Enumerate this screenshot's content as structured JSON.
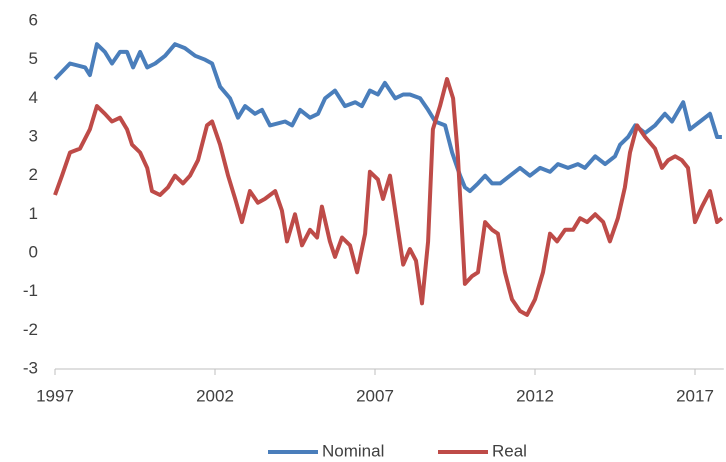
{
  "chart_data": {
    "type": "line",
    "xlim": [
      1997,
      2017.9
    ],
    "xticks": [
      1997,
      2002,
      2007,
      2012,
      2017
    ],
    "ylim": [
      -3,
      6
    ],
    "yticks": [
      -3,
      -2,
      -1,
      0,
      1,
      2,
      3,
      4,
      5,
      6
    ],
    "grid": false,
    "legend": "bottom",
    "series": [
      {
        "name": "Nominal",
        "color": "#4a7ebb",
        "x": [
          1997.0,
          1997.47,
          1997.94,
          1998.09,
          1998.31,
          1998.56,
          1998.78,
          1999.03,
          1999.25,
          1999.44,
          1999.66,
          1999.88,
          2000.13,
          2000.44,
          2000.75,
          2001.06,
          2001.38,
          2001.69,
          2001.91,
          2002.16,
          2002.47,
          2002.72,
          2002.94,
          2003.25,
          2003.47,
          2003.72,
          2004.19,
          2004.41,
          2004.66,
          2004.97,
          2005.22,
          2005.44,
          2005.75,
          2006.06,
          2006.38,
          2006.59,
          2006.84,
          2007.09,
          2007.31,
          2007.63,
          2007.88,
          2008.09,
          2008.41,
          2008.66,
          2008.88,
          2009.19,
          2009.41,
          2009.66,
          2009.81,
          2009.97,
          2010.22,
          2010.44,
          2010.66,
          2010.91,
          2011.22,
          2011.53,
          2011.84,
          2012.16,
          2012.47,
          2012.72,
          2013.03,
          2013.34,
          2013.56,
          2013.88,
          2014.19,
          2014.5,
          2014.66,
          2014.91,
          2015.13,
          2015.44,
          2015.75,
          2016.06,
          2016.28,
          2016.63,
          2016.84,
          2017.16,
          2017.47,
          2017.69,
          2017.84
        ],
        "values": [
          4.5,
          4.9,
          4.8,
          4.6,
          5.4,
          5.2,
          4.9,
          5.2,
          5.2,
          4.8,
          5.2,
          4.8,
          4.9,
          5.1,
          5.4,
          5.3,
          5.1,
          5.0,
          4.9,
          4.3,
          4.0,
          3.5,
          3.8,
          3.6,
          3.7,
          3.3,
          3.4,
          3.3,
          3.7,
          3.5,
          3.6,
          4.0,
          4.2,
          3.8,
          3.9,
          3.8,
          4.2,
          4.1,
          4.4,
          4.0,
          4.1,
          4.1,
          4.0,
          3.7,
          3.4,
          3.3,
          2.6,
          2.0,
          1.7,
          1.6,
          1.8,
          2.0,
          1.8,
          1.8,
          2.0,
          2.2,
          2.0,
          2.2,
          2.1,
          2.3,
          2.2,
          2.3,
          2.2,
          2.5,
          2.3,
          2.5,
          2.8,
          3.0,
          3.3,
          3.1,
          3.3,
          3.6,
          3.4,
          3.9,
          3.2,
          3.4,
          3.6,
          3.0,
          3.0
        ]
      },
      {
        "name": "Real",
        "color": "#be4b48",
        "x": [
          1997.0,
          1997.22,
          1997.47,
          1997.78,
          1998.09,
          1998.31,
          1998.56,
          1998.78,
          1999.03,
          1999.25,
          1999.41,
          1999.66,
          1999.88,
          2000.03,
          2000.28,
          2000.53,
          2000.75,
          2001.0,
          2001.22,
          2001.47,
          2001.75,
          2001.91,
          2002.16,
          2002.41,
          2002.63,
          2002.84,
          2003.09,
          2003.34,
          2003.56,
          2003.88,
          2004.09,
          2004.25,
          2004.5,
          2004.72,
          2004.97,
          2005.19,
          2005.34,
          2005.59,
          2005.75,
          2005.97,
          2006.22,
          2006.44,
          2006.69,
          2006.84,
          2007.09,
          2007.25,
          2007.47,
          2007.72,
          2007.88,
          2008.09,
          2008.28,
          2008.47,
          2008.66,
          2008.81,
          2009.03,
          2009.25,
          2009.44,
          2009.59,
          2009.81,
          2010.03,
          2010.22,
          2010.44,
          2010.66,
          2010.84,
          2011.06,
          2011.28,
          2011.53,
          2011.75,
          2012.0,
          2012.25,
          2012.47,
          2012.69,
          2012.94,
          2013.19,
          2013.41,
          2013.63,
          2013.88,
          2014.13,
          2014.34,
          2014.59,
          2014.81,
          2014.97,
          2015.19,
          2015.44,
          2015.75,
          2015.97,
          2016.16,
          2016.38,
          2016.59,
          2016.78,
          2017.0,
          2017.22,
          2017.47,
          2017.69,
          2017.84
        ],
        "values": [
          1.5,
          2.0,
          2.6,
          2.7,
          3.2,
          3.8,
          3.6,
          3.4,
          3.5,
          3.2,
          2.8,
          2.6,
          2.2,
          1.6,
          1.5,
          1.7,
          2.0,
          1.8,
          2.0,
          2.4,
          3.3,
          3.4,
          2.8,
          2.0,
          1.4,
          0.8,
          1.6,
          1.3,
          1.4,
          1.6,
          1.1,
          0.3,
          1.0,
          0.2,
          0.6,
          0.4,
          1.2,
          0.3,
          -0.1,
          0.4,
          0.2,
          -0.5,
          0.5,
          2.1,
          1.9,
          1.4,
          2.0,
          0.6,
          -0.3,
          0.1,
          -0.2,
          -1.3,
          0.3,
          3.2,
          3.8,
          4.5,
          4.0,
          2.5,
          -0.8,
          -0.6,
          -0.5,
          0.8,
          0.6,
          0.5,
          -0.5,
          -1.2,
          -1.5,
          -1.6,
          -1.2,
          -0.5,
          0.5,
          0.3,
          0.6,
          0.6,
          0.9,
          0.8,
          1.0,
          0.8,
          0.3,
          0.9,
          1.7,
          2.6,
          3.3,
          3.0,
          2.7,
          2.2,
          2.4,
          2.5,
          2.4,
          2.2,
          0.8,
          1.2,
          1.6,
          0.8,
          0.9
        ]
      }
    ]
  }
}
